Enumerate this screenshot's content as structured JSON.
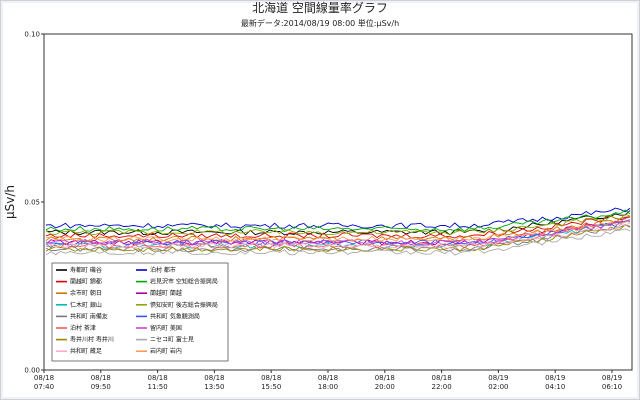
{
  "chart_data": {
    "type": "line",
    "title": "北海道 空間線量率グラフ",
    "subtitle": "最新データ:2014/08/19 08:00  単位:μSv/h",
    "ylabel": "μSv/h",
    "ylim": [
      0.0,
      0.1
    ],
    "yticks": [
      "0.00",
      "0.05",
      "0.10"
    ],
    "xticks": [
      [
        "08/18",
        "07:40"
      ],
      [
        "08/18",
        "09:50"
      ],
      [
        "08/18",
        "11:50"
      ],
      [
        "08/18",
        "13:50"
      ],
      [
        "08/18",
        "15:50"
      ],
      [
        "08/18",
        "18:00"
      ],
      [
        "08/18",
        "20:00"
      ],
      [
        "08/18",
        "22:00"
      ],
      [
        "08/19",
        "02:00"
      ],
      [
        "08/19",
        "04:10"
      ],
      [
        "08/19",
        "06:10"
      ]
    ],
    "legend_position": "bottom-left",
    "grid": "horizontal",
    "series": [
      {
        "name": "寿都町 磯谷",
        "color": "#000000",
        "base": 0.041,
        "end": 0.047
      },
      {
        "name": "泊村 都市",
        "color": "#0000cc",
        "base": 0.043,
        "end": 0.048
      },
      {
        "name": "蘭越町 錦都",
        "color": "#dd0000",
        "base": 0.04,
        "end": 0.046
      },
      {
        "name": "岩見沢市 空知総合振興局",
        "color": "#00aa00",
        "base": 0.042,
        "end": 0.047
      },
      {
        "name": "余市町 朝日",
        "color": "#cc7700",
        "base": 0.039,
        "end": 0.045
      },
      {
        "name": "蘭越町 蘭越",
        "color": "#aa00aa",
        "base": 0.038,
        "end": 0.045
      },
      {
        "name": "仁木町 銀山",
        "color": "#00bbbb",
        "base": 0.037,
        "end": 0.044
      },
      {
        "name": "倶知安町 後志総合振興局",
        "color": "#88aa00",
        "base": 0.041,
        "end": 0.046
      },
      {
        "name": "共和町 南備友",
        "color": "#777777",
        "base": 0.036,
        "end": 0.043
      },
      {
        "name": "共和町 気象観測局",
        "color": "#3355ff",
        "base": 0.038,
        "end": 0.044
      },
      {
        "name": "泊村 茶津",
        "color": "#ff5555",
        "base": 0.037,
        "end": 0.045
      },
      {
        "name": "留内町 美国",
        "color": "#cc44cc",
        "base": 0.038,
        "end": 0.044
      },
      {
        "name": "寿井川村 寿井川",
        "color": "#998800",
        "base": 0.036,
        "end": 0.043
      },
      {
        "name": "ニセコ町 富士見",
        "color": "#aaaaaa",
        "base": 0.035,
        "end": 0.042
      },
      {
        "name": "共和町 蔵足",
        "color": "#ffaacc",
        "base": 0.037,
        "end": 0.043
      },
      {
        "name": "岩内町 岩内",
        "color": "#ff9955",
        "base": 0.039,
        "end": 0.044
      }
    ]
  }
}
